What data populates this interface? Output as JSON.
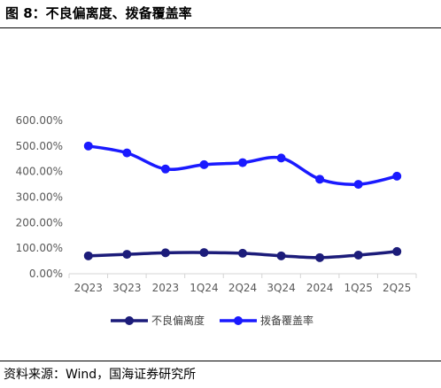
{
  "figure": {
    "title": "图 8：不良偏离度、拨备覆盖率",
    "source": "资料来源：Wind，国海证券研究所"
  },
  "chart_data": {
    "type": "line",
    "title": "",
    "xlabel": "",
    "ylabel": "",
    "categories": [
      "2Q23",
      "3Q23",
      "2023",
      "1Q24",
      "2Q24",
      "3Q24",
      "2024",
      "1Q25",
      "2Q25"
    ],
    "y_tick_labels": [
      "0.00%",
      "100.00%",
      "200.00%",
      "300.00%",
      "400.00%",
      "500.00%",
      "600.00%"
    ],
    "ylim": [
      0,
      600
    ],
    "grid": false,
    "legend": "bottom",
    "series": [
      {
        "name": "不良偏离度",
        "color": "#1c1c7a",
        "values": [
          70,
          76,
          82,
          83,
          80,
          70,
          63,
          73,
          87
        ]
      },
      {
        "name": "拨备覆盖率",
        "color": "#1a1aff",
        "values": [
          500,
          473,
          410,
          427,
          435,
          453,
          370,
          350,
          382
        ]
      }
    ]
  }
}
